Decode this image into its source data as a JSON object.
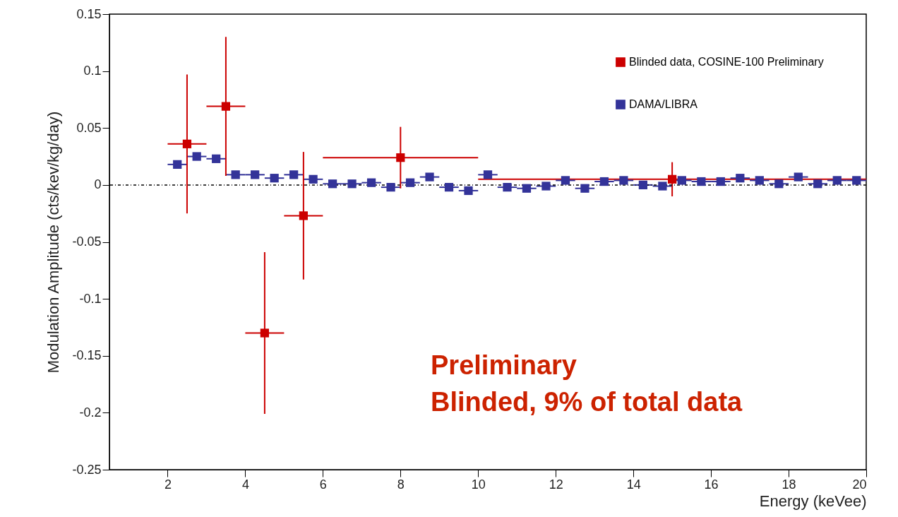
{
  "chart_data": {
    "type": "scatter",
    "xlabel": "Energy (keVee)",
    "ylabel": "Modulation Amplitude (cts/kev/kg/day)",
    "xlim": [
      0.5,
      20
    ],
    "xticks": [
      2,
      4,
      6,
      8,
      10,
      12,
      14,
      16,
      18,
      20
    ],
    "ylim": [
      -0.25,
      0.15
    ],
    "yticks": [
      -0.25,
      -0.2,
      -0.15,
      -0.1,
      -0.05,
      0,
      0.05,
      0.1,
      0.15
    ],
    "series": [
      {
        "name": "Blinded data, COSINE-100 Preliminary",
        "color": "#cc0000",
        "x": [
          2.5,
          3.5,
          4.5,
          5.5,
          8,
          15
        ],
        "values": [
          0.036,
          0.069,
          -0.13,
          -0.027,
          0.024,
          0.005
        ],
        "errors": [
          0.061,
          0.061,
          0.071,
          0.056,
          0.027,
          0.015
        ],
        "xerrors": [
          0.5,
          0.5,
          0.5,
          0.5,
          2,
          5
        ]
      },
      {
        "name": "DAMA/LIBRA",
        "color": "#333399",
        "x": [
          2.25,
          2.75,
          3.25,
          3.75,
          4.25,
          4.75,
          5.25,
          5.75,
          6.25,
          6.75,
          7.25,
          7.75,
          8.25,
          8.75,
          9.25,
          9.75,
          10.25,
          10.75,
          11.25,
          11.75,
          12.25,
          12.75,
          13.25,
          13.75,
          14.25,
          14.75,
          15.25,
          15.75,
          16.25,
          16.75,
          17.25,
          17.75,
          18.25,
          18.75,
          19.25,
          19.75
        ],
        "values": [
          0.018,
          0.025,
          0.023,
          0.009,
          0.009,
          0.006,
          0.009,
          0.005,
          0.001,
          0.001,
          0.002,
          -0.002,
          0.002,
          0.007,
          -0.002,
          -0.005,
          0.009,
          -0.002,
          -0.003,
          -0.001,
          0.004,
          -0.003,
          0.003,
          0.004,
          0,
          -0.001,
          0.004,
          0.003,
          0.003,
          0.006,
          0.004,
          0.001,
          0.007,
          0.001,
          0.004,
          0.004
        ],
        "xerrors": [
          0.25,
          0.25,
          0.25,
          0.25,
          0.25,
          0.25,
          0.25,
          0.25,
          0.25,
          0.25,
          0.25,
          0.25,
          0.25,
          0.25,
          0.25,
          0.25,
          0.25,
          0.25,
          0.25,
          0.25,
          0.25,
          0.25,
          0.25,
          0.25,
          0.25,
          0.25,
          0.25,
          0.25,
          0.25,
          0.25,
          0.25,
          0.25,
          0.25,
          0.25,
          0.25,
          0.25
        ]
      }
    ],
    "marker": "square",
    "legend": "top right",
    "grid": false,
    "ref_lines": [
      {
        "axis": "y",
        "value": 0,
        "line_style": "dashed",
        "color": "#000000"
      }
    ],
    "annotations": [
      "Preliminary\nBlinded, 9% of total data"
    ]
  }
}
